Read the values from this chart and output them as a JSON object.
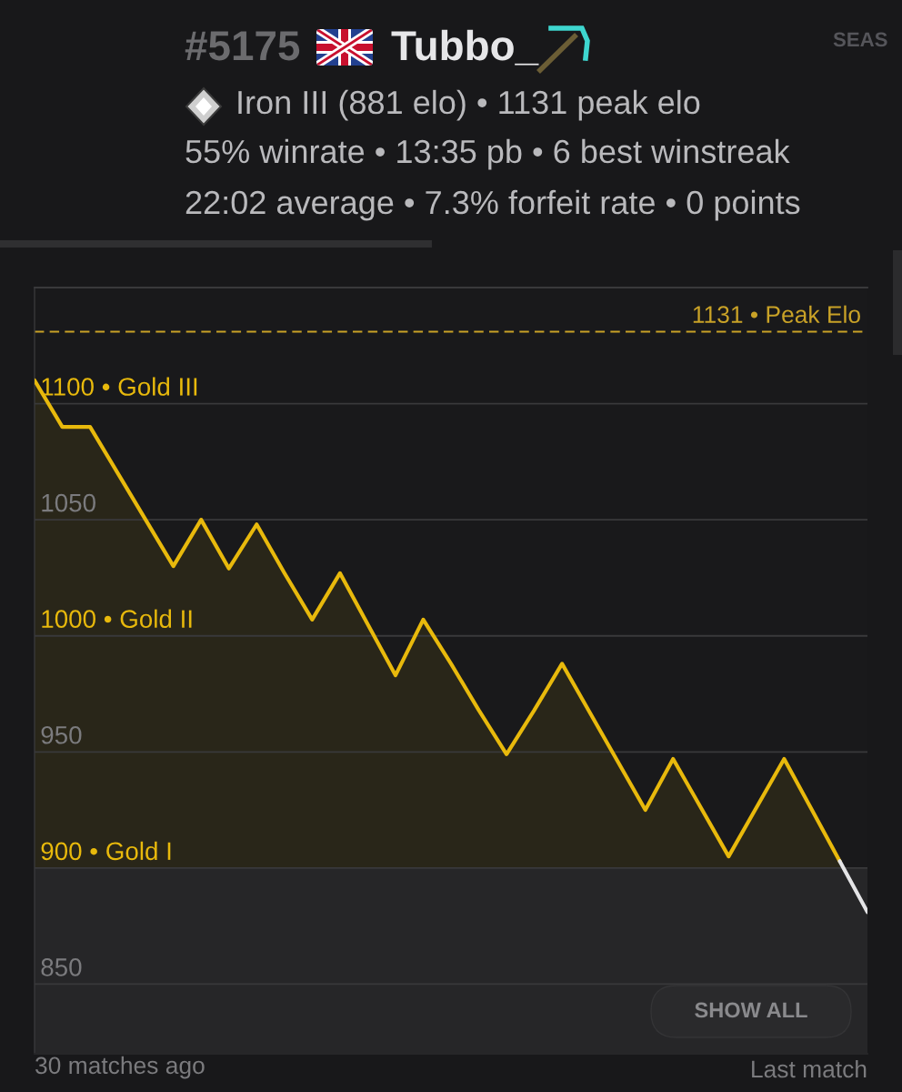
{
  "chart_data": {
    "type": "area",
    "title": "Tubbo_",
    "xlabel": "30 matches ago",
    "annotations": [
      "#5175",
      "SEAS",
      "Iron III (881 elo) • 1131 peak elo",
      "55% winrate • 13:35 pb • 6 best winstreak",
      "22:02 average • 7.3% forfeit rate • 0 points",
      "SHOW ALL",
      "Last match"
    ],
    "categories": [
      null,
      null,
      null,
      null,
      null,
      null,
      null,
      null,
      null,
      null,
      null,
      null,
      null,
      null,
      null,
      null,
      null,
      null,
      null,
      null,
      null,
      null,
      null,
      null,
      null,
      null,
      null,
      null,
      null,
      null,
      null
    ],
    "series": [
      {
        "color": "#e8b90c",
        "values": [
          1110,
          1090,
          1090,
          1070,
          1050,
          1030,
          1050,
          1029,
          1048,
          1027,
          1007,
          1027,
          1005,
          983,
          1007,
          988,
          968,
          949,
          968,
          988,
          967,
          946,
          925,
          947,
          926,
          905,
          926,
          947,
          925,
          903,
          881
        ],
        "colors": [
          "#e8b90c",
          "#e8b90c",
          "#e8b90c",
          "#e8b90c",
          "#e8b90c",
          "#e8b90c",
          "#e8b90c",
          "#e8b90c",
          "#e8b90c",
          "#e8b90c",
          "#e8b90c",
          "#e8b90c",
          "#e8b90c",
          "#e8b90c",
          "#e8b90c",
          "#e8b90c",
          "#e8b90c",
          "#e8b90c",
          "#e8b90c",
          "#e8b90c",
          "#e8b90c",
          "#e8b90c",
          "#e8b90c",
          "#e8b90c",
          "#e8b90c",
          "#e8b90c",
          "#e8b90c",
          "#e8b90c",
          "#e8b90c",
          "#e8b90c",
          "#e4e4e6"
        ]
      }
    ],
    "ylim": [
      820,
      1150
    ],
    "yticks": [
      850,
      {
        "value": 900,
        "label": "900 • Gold I"
      },
      950,
      {
        "value": 1000,
        "label": "1000 • Gold II"
      },
      1050,
      {
        "value": 1100,
        "label": "1100 • Gold III"
      },
      {
        "value": 1150,
        "label": null
      }
    ],
    "tick_labels": "y",
    "grid": "y",
    "ref_lines": [
      {
        "axis": "y",
        "value": 1131,
        "label": "1131 • Peak Elo",
        "color": "#c9a227",
        "line_style": "dashed"
      }
    ],
    "bands": [
      {
        "axis": "y",
        "from": 820,
        "to": 900,
        "color": "#262628"
      }
    ]
  }
}
